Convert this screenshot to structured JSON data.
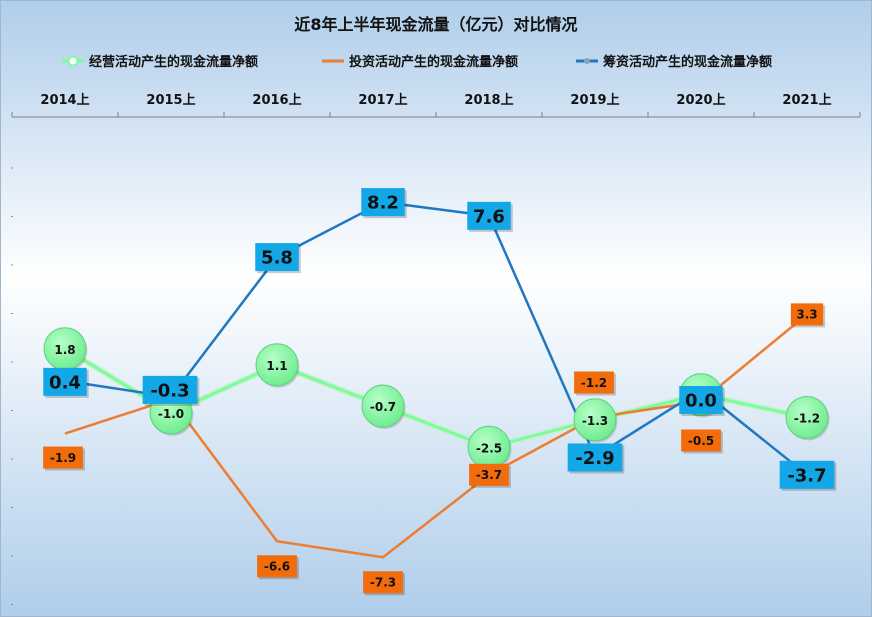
{
  "chart_data": {
    "type": "line",
    "title": "近8年上半年现金流量（亿元）对比情况",
    "xlabel": "",
    "ylabel": "",
    "categories": [
      "2014上",
      "2015上",
      "2016上",
      "2017上",
      "2018上",
      "2019上",
      "2020上",
      "2021上"
    ],
    "ylim": [
      -9.6,
      12
    ],
    "grid": false,
    "legend_position": "top",
    "x_axis_position": "top",
    "series": [
      {
        "name": "经营活动产生的现金流量净额",
        "values": [
          1.8,
          -1.0,
          1.1,
          -0.7,
          -2.5,
          -1.3,
          -0.2,
          -1.2
        ],
        "labels": [
          "1.8",
          "-1.0",
          "1.1",
          "-0.7",
          "-2.5",
          "-1.3",
          "-0.2",
          "-1.2"
        ],
        "color": "#7CFC9A",
        "marker": "circle"
      },
      {
        "name": "投资活动产生的现金流量净额",
        "values": [
          -1.9,
          -0.4,
          -6.6,
          -7.3,
          -3.7,
          -1.2,
          -0.5,
          3.3
        ],
        "labels": [
          "-1.9",
          "-0.4",
          "-6.6",
          "-7.3",
          "-3.7",
          "-1.2",
          "-0.5",
          "3.3"
        ],
        "color": "#ED7D31",
        "marker": "square"
      },
      {
        "name": "筹资活动产生的现金流量净额",
        "values": [
          0.4,
          -0.3,
          5.8,
          8.2,
          7.6,
          -2.9,
          0.0,
          -3.7
        ],
        "labels": [
          "0.4",
          "-0.3",
          "5.8",
          "8.2",
          "7.6",
          "-2.9",
          "0.0",
          "-3.7"
        ],
        "color": "#1F78C1",
        "marker": "square"
      }
    ],
    "colors": {
      "background_top": "#AFCDEA",
      "background_mid": "#FFFFFF",
      "background_bottom": "#AFCDEA",
      "label_orange": "#F26C0C",
      "label_blue": "#12A7E6",
      "circle_green": "#8CF5A6"
    }
  }
}
